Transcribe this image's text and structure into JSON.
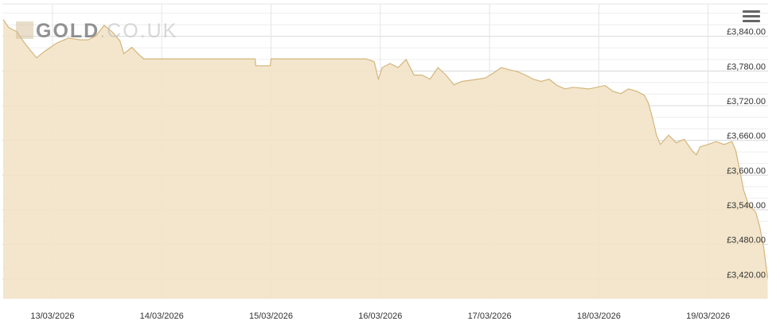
{
  "logo": {
    "main": "GOLD",
    "suffix": ".CO.UK"
  },
  "menu_icon": "hamburger-menu-icon",
  "chart_data": {
    "type": "area",
    "title": "",
    "xlabel": "",
    "ylabel": "",
    "xlim": [
      "2026-03-12T13:00",
      "2026-03-19T13:10"
    ],
    "ylim": [
      3386,
      3896
    ],
    "grid": true,
    "colors": {
      "fill": "#f2e3c6",
      "line": "#d4b57c",
      "grid": "#e0e0e0"
    },
    "y_ticks": [
      {
        "value": 3840,
        "label": "£3,840.00"
      },
      {
        "value": 3780,
        "label": "£3,780.00"
      },
      {
        "value": 3720,
        "label": "£3,720.00"
      },
      {
        "value": 3660,
        "label": "£3,660.00"
      },
      {
        "value": 3600,
        "label": "£3,600.00"
      },
      {
        "value": 3540,
        "label": "£3,540.00"
      },
      {
        "value": 3480,
        "label": "£3,480.00"
      },
      {
        "value": 3420,
        "label": "£3,420.00"
      }
    ],
    "x_ticks": [
      {
        "value": "2026-03-13T00:00",
        "label": "13/03/2026"
      },
      {
        "value": "2026-03-14T00:00",
        "label": "14/03/2026"
      },
      {
        "value": "2026-03-15T00:00",
        "label": "15/03/2026"
      },
      {
        "value": "2026-03-16T00:00",
        "label": "16/03/2026"
      },
      {
        "value": "2026-03-17T00:00",
        "label": "17/03/2026"
      },
      {
        "value": "2026-03-18T00:00",
        "label": "18/03/2026"
      },
      {
        "value": "2026-03-19T00:00",
        "label": "19/03/2026"
      }
    ],
    "series": [
      {
        "points": [
          [
            "2026-03-12T13:10",
            3869
          ],
          [
            "2026-03-12T14:25",
            3855
          ],
          [
            "2026-03-12T16:10",
            3848
          ],
          [
            "2026-03-12T17:55",
            3828
          ],
          [
            "2026-03-12T20:30",
            3803
          ],
          [
            "2026-03-12T22:15",
            3814
          ],
          [
            "2026-03-13T00:50",
            3828
          ],
          [
            "2026-03-13T03:30",
            3837
          ],
          [
            "2026-03-13T06:05",
            3834
          ],
          [
            "2026-03-13T07:50",
            3834
          ],
          [
            "2026-03-13T09:35",
            3841
          ],
          [
            "2026-03-13T11:20",
            3859
          ],
          [
            "2026-03-13T13:05",
            3848
          ],
          [
            "2026-03-13T14:50",
            3832
          ],
          [
            "2026-03-13T15:40",
            3810
          ],
          [
            "2026-03-13T17:25",
            3821
          ],
          [
            "2026-03-13T19:10",
            3807
          ],
          [
            "2026-03-13T20:05",
            3801
          ],
          [
            "2026-03-14T20:30",
            3801
          ],
          [
            "2026-03-14T20:40",
            3789
          ],
          [
            "2026-03-14T23:50",
            3789
          ],
          [
            "2026-03-15T00:00",
            3801
          ],
          [
            "2026-03-15T20:55",
            3801
          ],
          [
            "2026-03-15T22:40",
            3796
          ],
          [
            "2026-03-15T23:35",
            3766
          ],
          [
            "2026-03-16T00:25",
            3786
          ],
          [
            "2026-03-16T02:10",
            3793
          ],
          [
            "2026-03-16T03:55",
            3786
          ],
          [
            "2026-03-16T05:40",
            3800
          ],
          [
            "2026-03-16T07:25",
            3773
          ],
          [
            "2026-03-16T09:10",
            3773
          ],
          [
            "2026-03-16T10:55",
            3766
          ],
          [
            "2026-03-16T12:40",
            3786
          ],
          [
            "2026-03-16T14:25",
            3773
          ],
          [
            "2026-03-16T16:10",
            3756
          ],
          [
            "2026-03-16T17:55",
            3762
          ],
          [
            "2026-03-16T21:25",
            3766
          ],
          [
            "2026-03-16T23:05",
            3768
          ],
          [
            "2026-03-17T00:55",
            3777
          ],
          [
            "2026-03-17T02:35",
            3786
          ],
          [
            "2026-03-17T04:25",
            3782
          ],
          [
            "2026-03-17T06:05",
            3779
          ],
          [
            "2026-03-17T07:55",
            3773
          ],
          [
            "2026-03-17T09:35",
            3766
          ],
          [
            "2026-03-17T11:20",
            3762
          ],
          [
            "2026-03-17T13:05",
            3766
          ],
          [
            "2026-03-17T14:50",
            3755
          ],
          [
            "2026-03-17T16:35",
            3749
          ],
          [
            "2026-03-17T18:20",
            3752
          ],
          [
            "2026-03-17T21:50",
            3749
          ],
          [
            "2026-03-18T01:20",
            3755
          ],
          [
            "2026-03-18T03:05",
            3745
          ],
          [
            "2026-03-18T04:50",
            3741
          ],
          [
            "2026-03-18T06:30",
            3749
          ],
          [
            "2026-03-18T08:20",
            3745
          ],
          [
            "2026-03-18T10:00",
            3738
          ],
          [
            "2026-03-18T10:55",
            3724
          ],
          [
            "2026-03-18T11:50",
            3697
          ],
          [
            "2026-03-18T12:40",
            3669
          ],
          [
            "2026-03-18T13:30",
            3653
          ],
          [
            "2026-03-18T15:20",
            3669
          ],
          [
            "2026-03-18T17:00",
            3656
          ],
          [
            "2026-03-18T18:45",
            3662
          ],
          [
            "2026-03-18T20:30",
            3642
          ],
          [
            "2026-03-18T21:25",
            3635
          ],
          [
            "2026-03-18T22:15",
            3649
          ],
          [
            "2026-03-19T00:00",
            3653
          ],
          [
            "2026-03-19T01:45",
            3658
          ],
          [
            "2026-03-19T03:30",
            3653
          ],
          [
            "2026-03-19T05:15",
            3658
          ],
          [
            "2026-03-19T06:05",
            3642
          ],
          [
            "2026-03-19T07:00",
            3607
          ],
          [
            "2026-03-19T07:50",
            3573
          ],
          [
            "2026-03-19T08:45",
            3552
          ],
          [
            "2026-03-19T10:30",
            3535
          ],
          [
            "2026-03-19T11:20",
            3511
          ],
          [
            "2026-03-19T12:10",
            3477
          ],
          [
            "2026-03-19T13:05",
            3422
          ]
        ]
      }
    ]
  }
}
